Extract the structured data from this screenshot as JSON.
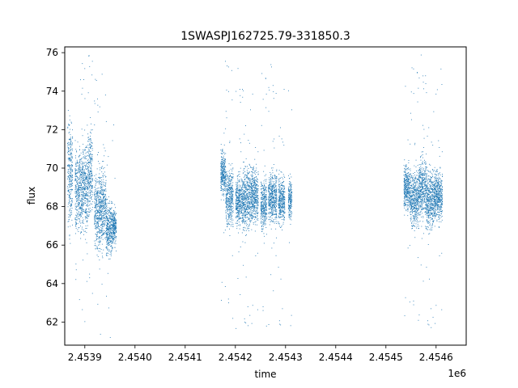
{
  "chart_data": {
    "type": "scatter",
    "title": "1SWASPJ162725.79-331850.3",
    "xlabel": "time",
    "ylabel": "flux",
    "x_offset_label": "1e6",
    "xlim": [
      2453860,
      2454660
    ],
    "ylim": [
      60.8,
      76.3
    ],
    "grid": false,
    "legend": "none",
    "point_color": "#1f77b4",
    "x_ticks": [
      2453900,
      2454000,
      2454100,
      2454200,
      2454300,
      2454400,
      2454500,
      2454600
    ],
    "x_tick_labels": [
      "2.4539",
      "2.4540",
      "2.4541",
      "2.4542",
      "2.4543",
      "2.4544",
      "2.4545",
      "2.4546"
    ],
    "y_ticks": [
      62,
      64,
      66,
      68,
      70,
      72,
      74,
      76
    ],
    "y_tick_labels": [
      "62",
      "64",
      "66",
      "68",
      "70",
      "72",
      "74",
      "76"
    ],
    "series": [
      {
        "segments": [
          {
            "x0": 2453865,
            "x1": 2453875,
            "center": 69.8,
            "spread": 1.8
          },
          {
            "x0": 2453880,
            "x1": 2453895,
            "center": 68.8,
            "spread": 1.5
          },
          {
            "x0": 2453895,
            "x1": 2453905,
            "center": 69.0,
            "spread": 1.6
          },
          {
            "x0": 2453905,
            "x1": 2453915,
            "center": 69.8,
            "spread": 1.5
          },
          {
            "x0": 2453918,
            "x1": 2453930,
            "center": 67.8,
            "spread": 1.4
          },
          {
            "x0": 2453930,
            "x1": 2453942,
            "center": 68.0,
            "spread": 1.4
          },
          {
            "x0": 2453942,
            "x1": 2453955,
            "center": 66.8,
            "spread": 0.9
          },
          {
            "x0": 2453955,
            "x1": 2453962,
            "center": 67.0,
            "spread": 0.6
          },
          {
            "x0": 2454170,
            "x1": 2454180,
            "center": 69.8,
            "spread": 0.8
          },
          {
            "x0": 2454180,
            "x1": 2454195,
            "center": 68.5,
            "spread": 1.0
          },
          {
            "x0": 2454200,
            "x1": 2454215,
            "center": 68.3,
            "spread": 0.9
          },
          {
            "x0": 2454215,
            "x1": 2454230,
            "center": 68.4,
            "spread": 1.1
          },
          {
            "x0": 2454230,
            "x1": 2454245,
            "center": 68.6,
            "spread": 1.0
          },
          {
            "x0": 2454250,
            "x1": 2454262,
            "center": 68.1,
            "spread": 0.9
          },
          {
            "x0": 2454265,
            "x1": 2454282,
            "center": 68.5,
            "spread": 0.9
          },
          {
            "x0": 2454285,
            "x1": 2454298,
            "center": 68.3,
            "spread": 0.8
          },
          {
            "x0": 2454305,
            "x1": 2454312,
            "center": 68.4,
            "spread": 0.7
          },
          {
            "x0": 2454535,
            "x1": 2454548,
            "center": 69.0,
            "spread": 0.8
          },
          {
            "x0": 2454548,
            "x1": 2454565,
            "center": 68.4,
            "spread": 1.0
          },
          {
            "x0": 2454565,
            "x1": 2454580,
            "center": 69.0,
            "spread": 1.1
          },
          {
            "x0": 2454580,
            "x1": 2454595,
            "center": 68.3,
            "spread": 1.0
          },
          {
            "x0": 2454595,
            "x1": 2454612,
            "center": 68.6,
            "spread": 0.9
          }
        ]
      }
    ]
  }
}
